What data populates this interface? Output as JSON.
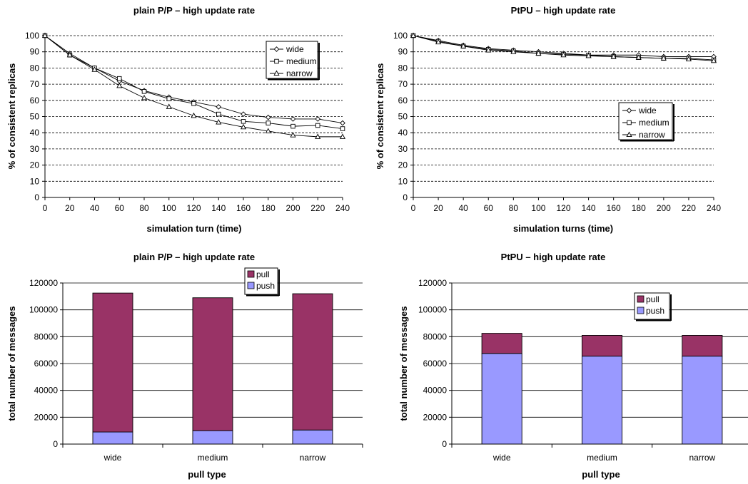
{
  "chart_data": [
    {
      "id": "tl",
      "type": "line",
      "title": "plain P/P – high update rate",
      "xlabel": "simulation turn (time)",
      "ylabel": "% of consistent replicas",
      "xlim": [
        0,
        240
      ],
      "ylim": [
        0,
        100
      ],
      "x": [
        0,
        20,
        40,
        60,
        80,
        100,
        120,
        140,
        160,
        180,
        200,
        220,
        240
      ],
      "xticks": [
        "0",
        "20",
        "40",
        "60",
        "80",
        "100",
        "120",
        "140",
        "160",
        "180",
        "200",
        "220",
        "240"
      ],
      "yticks": [
        "0",
        "10",
        "20",
        "30",
        "40",
        "50",
        "60",
        "70",
        "80",
        "90",
        "100"
      ],
      "grid": "horizontal-dashed",
      "legend_position": "top-right",
      "series": [
        {
          "name": "wide",
          "marker": "diamond",
          "values": [
            100,
            89,
            80,
            72,
            66,
            62,
            59,
            56,
            51.5,
            49.5,
            48.5,
            48.5,
            46
          ]
        },
        {
          "name": "medium",
          "marker": "square",
          "values": [
            100,
            88,
            80,
            73.5,
            65.5,
            61,
            58,
            51.5,
            47,
            46,
            44,
            44.5,
            42.5
          ]
        },
        {
          "name": "narrow",
          "marker": "triangle",
          "values": [
            100,
            88,
            79,
            69,
            61.5,
            56,
            50.5,
            46.5,
            43.5,
            41,
            38.5,
            37.5,
            37.5
          ]
        }
      ]
    },
    {
      "id": "tr",
      "type": "line",
      "title": "PtPU – high update rate",
      "xlabel": "simulation turns (time)",
      "ylabel": "% of consistent replicas",
      "xlim": [
        0,
        240
      ],
      "ylim": [
        0,
        100
      ],
      "x": [
        0,
        20,
        40,
        60,
        80,
        100,
        120,
        140,
        160,
        180,
        200,
        220,
        240
      ],
      "xticks": [
        "0",
        "20",
        "40",
        "60",
        "80",
        "100",
        "120",
        "140",
        "160",
        "180",
        "200",
        "220",
        "240"
      ],
      "yticks": [
        "0",
        "10",
        "20",
        "30",
        "40",
        "50",
        "60",
        "70",
        "80",
        "90",
        "100"
      ],
      "grid": "horizontal-dashed",
      "legend_position": "center-right",
      "series": [
        {
          "name": "wide",
          "marker": "diamond",
          "values": [
            100,
            97,
            94,
            92,
            91,
            90,
            89,
            88,
            88,
            88,
            87,
            87,
            87
          ]
        },
        {
          "name": "medium",
          "marker": "square",
          "values": [
            100,
            96.5,
            93.5,
            91.5,
            90.5,
            89,
            88.5,
            88,
            87,
            86.5,
            86,
            86,
            85
          ]
        },
        {
          "name": "narrow",
          "marker": "triangle",
          "values": [
            100,
            96,
            93.5,
            91,
            90,
            89,
            88,
            87.5,
            87,
            86.5,
            86,
            85.5,
            84.5
          ]
        }
      ]
    },
    {
      "id": "bl",
      "type": "bar",
      "stacked": true,
      "title": "plain P/P – high update rate",
      "xlabel": "pull type",
      "ylabel": "total number of messages",
      "categories": [
        "wide",
        "medium",
        "narrow"
      ],
      "ylim": [
        0,
        120000
      ],
      "yticks": [
        "0",
        "20000",
        "40000",
        "60000",
        "80000",
        "100000",
        "120000"
      ],
      "grid": "horizontal-solid",
      "legend_position": "top-right",
      "series": [
        {
          "name": "push",
          "color": "#9999ff",
          "values": [
            9000,
            10000,
            10500
          ]
        },
        {
          "name": "pull",
          "color": "#993366",
          "values": [
            103500,
            99000,
            101500
          ]
        }
      ]
    },
    {
      "id": "br",
      "type": "bar",
      "stacked": true,
      "title": "PtPU – high update rate",
      "xlabel": "pull type",
      "ylabel": "total number of messages",
      "categories": [
        "wide",
        "medium",
        "narrow"
      ],
      "ylim": [
        0,
        120000
      ],
      "yticks": [
        "0",
        "20000",
        "40000",
        "60000",
        "80000",
        "100000",
        "120000"
      ],
      "grid": "horizontal-solid",
      "legend_position": "top-right",
      "series": [
        {
          "name": "push",
          "color": "#9999ff",
          "values": [
            67500,
            65500,
            65500
          ]
        },
        {
          "name": "pull",
          "color": "#993366",
          "values": [
            15000,
            15500,
            15500
          ]
        }
      ]
    }
  ]
}
